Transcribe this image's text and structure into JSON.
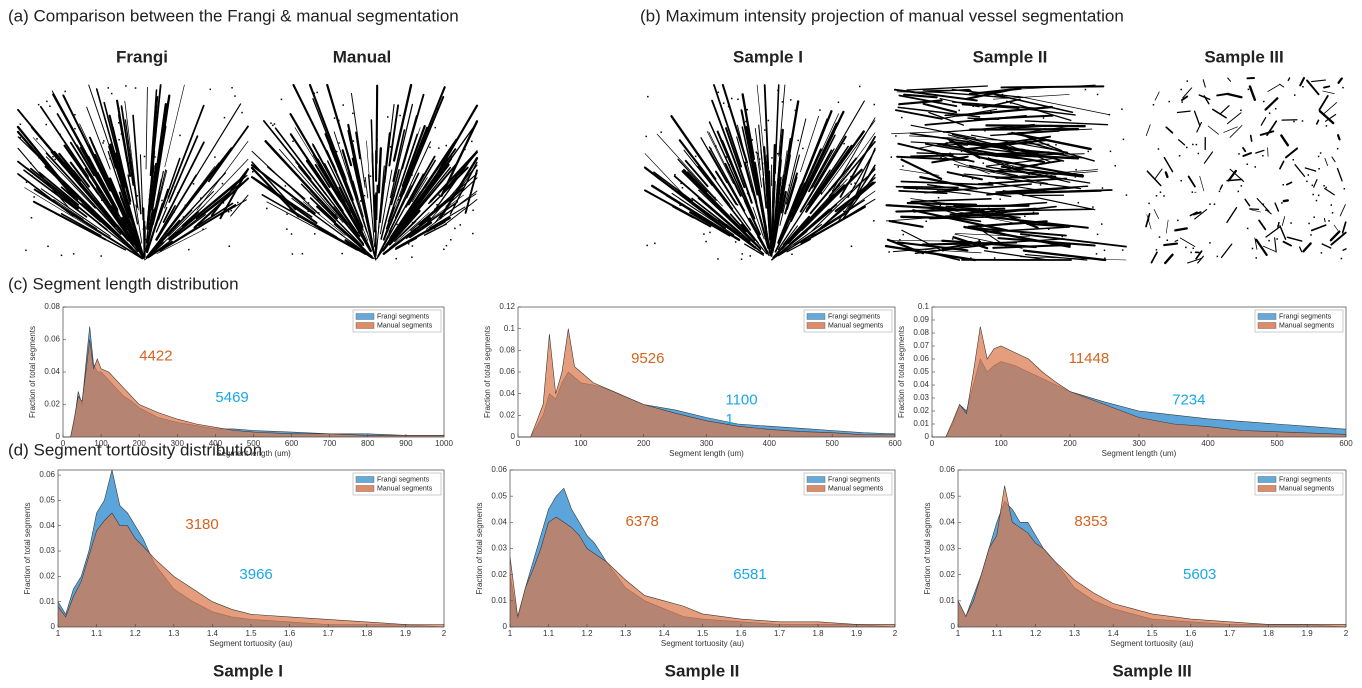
{
  "panels": {
    "a": {
      "title": "(a) Comparison between the Frangi & manual segmentation",
      "labels": [
        "Frangi",
        "Manual"
      ]
    },
    "b": {
      "title": "(b) Maximum intensity projection of manual vessel segmentation",
      "labels": [
        "Sample I",
        "Sample II",
        "Sample III"
      ]
    },
    "c": {
      "title": "(c) Segment length distribution"
    },
    "d": {
      "title": "(d) Segment tortuosity distribution"
    },
    "columns": [
      "Sample I",
      "Sample II",
      "Sample III"
    ]
  },
  "chart_data": [
    {
      "type": "area",
      "xlabel": "Segment length (um)",
      "ylabel": "Fraction of total segments",
      "legend": "upper right",
      "x": [
        0,
        20,
        30,
        40,
        50,
        60,
        70,
        80,
        90,
        100,
        120,
        140,
        160,
        180,
        200,
        250,
        300,
        350,
        400,
        450,
        500,
        600,
        700,
        800,
        900,
        1000
      ],
      "series": [
        {
          "name": "Frangi segments",
          "color": "#4a9bd6",
          "values": [
            0,
            0,
            0.01,
            0.028,
            0.02,
            0.045,
            0.068,
            0.045,
            0.04,
            0.04,
            0.035,
            0.03,
            0.025,
            0.022,
            0.018,
            0.012,
            0.009,
            0.007,
            0.005,
            0.005,
            0.004,
            0.003,
            0.002,
            0.002,
            0.001,
            0.001
          ]
        },
        {
          "name": "Manual segments",
          "color": "#d9774b",
          "values": [
            0,
            0,
            0.012,
            0.025,
            0.022,
            0.04,
            0.06,
            0.042,
            0.048,
            0.042,
            0.04,
            0.035,
            0.03,
            0.025,
            0.02,
            0.015,
            0.011,
            0.008,
            0.006,
            0.004,
            0.003,
            0.002,
            0.002,
            0.001,
            0.001,
            0.001
          ]
        }
      ],
      "xlim": [
        0,
        1000
      ],
      "ylim": [
        0,
        0.08
      ],
      "xticks": [
        0,
        100,
        200,
        300,
        400,
        500,
        600,
        700,
        800,
        900,
        1000
      ],
      "yticks": [
        0,
        0.02,
        0.04,
        0.06,
        0.08
      ],
      "annotations": [
        {
          "text": "4422",
          "color": "#d4631f"
        },
        {
          "text": "5469",
          "color": "#1aa7e8"
        }
      ]
    },
    {
      "type": "area",
      "xlabel": "Segment length (um)",
      "ylabel": "Fraction of total segments",
      "legend": "upper right",
      "x": [
        0,
        20,
        30,
        40,
        50,
        60,
        70,
        80,
        90,
        100,
        120,
        140,
        160,
        180,
        200,
        250,
        300,
        350,
        400,
        450,
        500,
        550,
        600
      ],
      "series": [
        {
          "name": "Frangi segments",
          "color": "#4a9bd6",
          "values": [
            0,
            0,
            0.01,
            0.02,
            0.04,
            0.035,
            0.05,
            0.06,
            0.055,
            0.05,
            0.048,
            0.045,
            0.04,
            0.035,
            0.03,
            0.025,
            0.018,
            0.012,
            0.01,
            0.008,
            0.006,
            0.004,
            0.003
          ]
        },
        {
          "name": "Manual segments",
          "color": "#d9774b",
          "values": [
            0,
            0,
            0.015,
            0.03,
            0.095,
            0.04,
            0.06,
            0.1,
            0.065,
            0.06,
            0.05,
            0.045,
            0.04,
            0.035,
            0.03,
            0.022,
            0.015,
            0.01,
            0.007,
            0.005,
            0.004,
            0.002,
            0.002
          ]
        }
      ],
      "xlim": [
        0,
        600
      ],
      "ylim": [
        0,
        0.12
      ],
      "xticks": [
        0,
        100,
        200,
        300,
        400,
        500,
        600
      ],
      "yticks": [
        0,
        0.02,
        0.04,
        0.06,
        0.08,
        0.1,
        0.12
      ],
      "annotations": [
        {
          "text": "9526",
          "color": "#d4631f"
        },
        {
          "text": "1100",
          "color": "#1aa7e8"
        },
        {
          "text": "1",
          "color": "#1aa7e8"
        }
      ]
    },
    {
      "type": "area",
      "xlabel": "Segment length (um)",
      "ylabel": "Fraction of total segments",
      "legend": "upper right",
      "x": [
        0,
        20,
        30,
        40,
        50,
        60,
        70,
        80,
        90,
        100,
        120,
        140,
        160,
        180,
        200,
        250,
        300,
        350,
        400,
        450,
        500,
        550,
        600
      ],
      "series": [
        {
          "name": "Frangi segments",
          "color": "#4a9bd6",
          "values": [
            0,
            0,
            0.01,
            0.025,
            0.02,
            0.04,
            0.06,
            0.05,
            0.055,
            0.058,
            0.055,
            0.05,
            0.045,
            0.04,
            0.035,
            0.027,
            0.02,
            0.017,
            0.014,
            0.012,
            0.01,
            0.008,
            0.006
          ]
        },
        {
          "name": "Manual segments",
          "color": "#d9774b",
          "values": [
            0,
            0,
            0.012,
            0.025,
            0.018,
            0.05,
            0.085,
            0.06,
            0.068,
            0.07,
            0.065,
            0.06,
            0.05,
            0.042,
            0.035,
            0.025,
            0.015,
            0.01,
            0.008,
            0.005,
            0.004,
            0.003,
            0.002
          ]
        }
      ],
      "xlim": [
        0,
        600
      ],
      "ylim": [
        0,
        0.1
      ],
      "xticks": [
        0,
        100,
        200,
        300,
        400,
        500,
        600
      ],
      "yticks": [
        0,
        0.01,
        0.02,
        0.03,
        0.04,
        0.05,
        0.06,
        0.07,
        0.08,
        0.09,
        0.1
      ],
      "annotations": [
        {
          "text": "11448",
          "color": "#d4631f"
        },
        {
          "text": "7234",
          "color": "#1aa7e8"
        }
      ]
    },
    {
      "type": "area",
      "xlabel": "Segment tortuosity (au)",
      "ylabel": "Fraction of total segments",
      "legend": "upper right",
      "x": [
        1,
        1.02,
        1.04,
        1.06,
        1.08,
        1.1,
        1.12,
        1.14,
        1.16,
        1.18,
        1.2,
        1.22,
        1.25,
        1.3,
        1.35,
        1.4,
        1.45,
        1.5,
        1.6,
        1.7,
        1.8,
        1.9,
        2
      ],
      "series": [
        {
          "name": "Frangi segments",
          "color": "#4a9bd6",
          "values": [
            0.01,
            0.005,
            0.015,
            0.02,
            0.03,
            0.045,
            0.05,
            0.062,
            0.048,
            0.045,
            0.04,
            0.035,
            0.025,
            0.015,
            0.01,
            0.006,
            0.004,
            0.003,
            0.002,
            0.001,
            0.001,
            0.001,
            0
          ]
        },
        {
          "name": "Manual segments",
          "color": "#d9774b",
          "values": [
            0.008,
            0.004,
            0.012,
            0.018,
            0.028,
            0.038,
            0.042,
            0.045,
            0.04,
            0.04,
            0.035,
            0.032,
            0.027,
            0.02,
            0.015,
            0.01,
            0.007,
            0.005,
            0.004,
            0.003,
            0.002,
            0.001,
            0.001
          ]
        }
      ],
      "xlim": [
        1,
        2
      ],
      "ylim": [
        0,
        0.062
      ],
      "xticks": [
        1,
        1.1,
        1.2,
        1.3,
        1.4,
        1.5,
        1.6,
        1.7,
        1.8,
        1.9,
        2
      ],
      "yticks": [
        0,
        0.01,
        0.02,
        0.03,
        0.04,
        0.05,
        0.06
      ],
      "annotations": [
        {
          "text": "3180",
          "color": "#d4631f"
        },
        {
          "text": "3966",
          "color": "#1aa7e8"
        }
      ]
    },
    {
      "type": "area",
      "xlabel": "Segment tortuosity (au)",
      "ylabel": "Fraction of total segments",
      "legend": "upper right",
      "x": [
        1,
        1.02,
        1.04,
        1.06,
        1.08,
        1.1,
        1.12,
        1.14,
        1.16,
        1.18,
        1.2,
        1.22,
        1.25,
        1.3,
        1.35,
        1.4,
        1.45,
        1.5,
        1.6,
        1.7,
        1.8,
        1.9,
        2
      ],
      "series": [
        {
          "name": "Frangi segments",
          "color": "#4a9bd6",
          "values": [
            0.02,
            0.003,
            0.015,
            0.025,
            0.035,
            0.045,
            0.05,
            0.053,
            0.045,
            0.04,
            0.035,
            0.032,
            0.025,
            0.015,
            0.01,
            0.007,
            0.004,
            0.003,
            0.002,
            0.001,
            0.001,
            0.001,
            0
          ]
        },
        {
          "name": "Manual segments",
          "color": "#d9774b",
          "values": [
            0.027,
            0.004,
            0.015,
            0.022,
            0.03,
            0.04,
            0.042,
            0.04,
            0.038,
            0.035,
            0.03,
            0.028,
            0.025,
            0.018,
            0.012,
            0.01,
            0.008,
            0.005,
            0.003,
            0.002,
            0.002,
            0.001,
            0.001
          ]
        }
      ],
      "xlim": [
        1,
        2
      ],
      "ylim": [
        0,
        0.06
      ],
      "xticks": [
        1,
        1.1,
        1.2,
        1.3,
        1.4,
        1.5,
        1.6,
        1.7,
        1.8,
        1.9,
        2
      ],
      "yticks": [
        0,
        0.01,
        0.02,
        0.03,
        0.04,
        0.05,
        0.06
      ],
      "annotations": [
        {
          "text": "6378",
          "color": "#d4631f"
        },
        {
          "text": "6581",
          "color": "#1aa7e8"
        }
      ]
    },
    {
      "type": "area",
      "xlabel": "Segment tortuosity (au)",
      "ylabel": "Fraction of total segments",
      "legend": "upper right",
      "x": [
        1,
        1.02,
        1.04,
        1.06,
        1.08,
        1.1,
        1.12,
        1.14,
        1.16,
        1.18,
        1.2,
        1.22,
        1.25,
        1.3,
        1.35,
        1.4,
        1.45,
        1.5,
        1.6,
        1.7,
        1.8,
        1.9,
        2
      ],
      "series": [
        {
          "name": "Frangi segments",
          "color": "#4a9bd6",
          "values": [
            0.01,
            0.004,
            0.012,
            0.02,
            0.03,
            0.04,
            0.048,
            0.045,
            0.04,
            0.04,
            0.035,
            0.03,
            0.025,
            0.015,
            0.01,
            0.007,
            0.005,
            0.003,
            0.002,
            0.001,
            0.001,
            0.001,
            0
          ]
        },
        {
          "name": "Manual segments",
          "color": "#d9774b",
          "values": [
            0.01,
            0.004,
            0.01,
            0.02,
            0.03,
            0.035,
            0.054,
            0.04,
            0.038,
            0.036,
            0.032,
            0.03,
            0.025,
            0.018,
            0.013,
            0.009,
            0.007,
            0.005,
            0.003,
            0.002,
            0.001,
            0.001,
            0.001
          ]
        }
      ],
      "xlim": [
        1,
        2
      ],
      "ylim": [
        0,
        0.06
      ],
      "xticks": [
        1,
        1.1,
        1.2,
        1.3,
        1.4,
        1.5,
        1.6,
        1.7,
        1.8,
        1.9,
        2
      ],
      "yticks": [
        0,
        0.01,
        0.02,
        0.03,
        0.04,
        0.05,
        0.06
      ],
      "annotations": [
        {
          "text": "8353",
          "color": "#d4631f"
        },
        {
          "text": "5603",
          "color": "#1aa7e8"
        }
      ]
    }
  ]
}
